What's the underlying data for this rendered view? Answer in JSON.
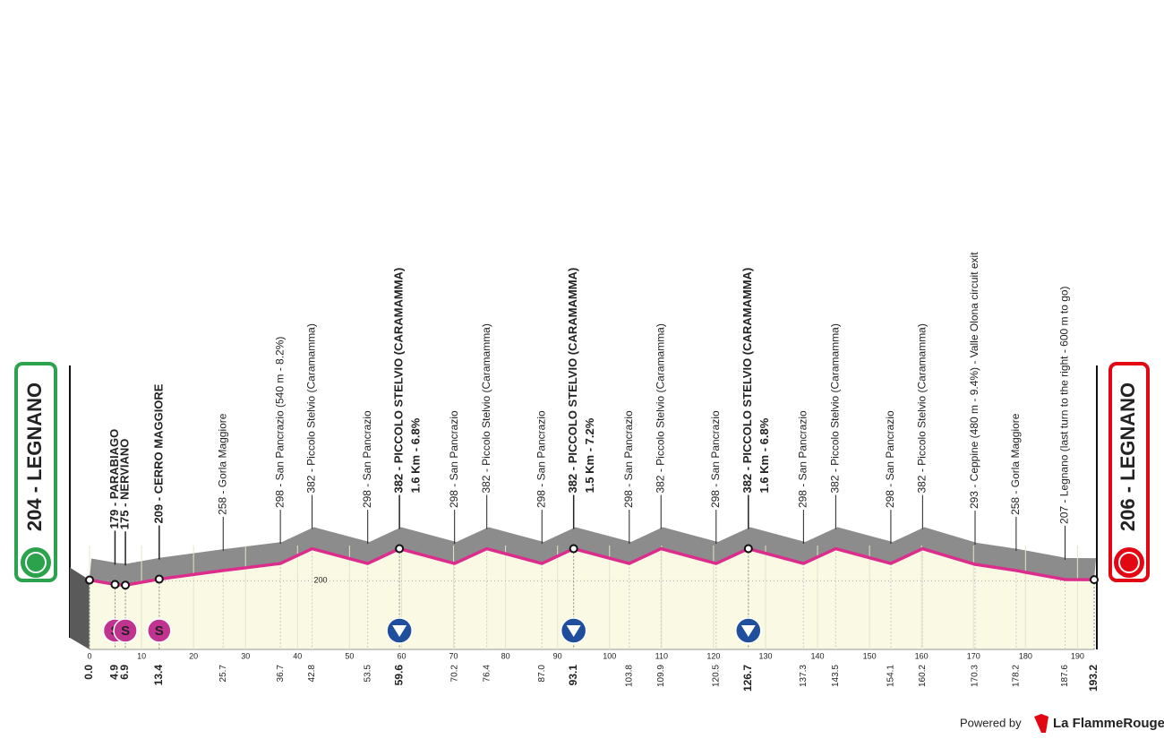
{
  "chart_data": {
    "type": "profile",
    "x": [
      {
        "value": 0,
        "label": "0.0"
      },
      4.9,
      6.9,
      13.4,
      25.7,
      36.7,
      42.8,
      53.5,
      59.6,
      70.2,
      76.4,
      {
        "value": 87,
        "label": "87.0"
      },
      93.1,
      103.8,
      109.9,
      120.5,
      126.7,
      137.3,
      143.5,
      154.1,
      160.2,
      170.3,
      178.2,
      187.6,
      193.2
    ],
    "values": [
      204,
      179,
      175,
      209,
      258,
      298,
      382,
      298,
      382,
      298,
      382,
      298,
      382,
      298,
      382,
      298,
      382,
      298,
      382,
      298,
      382,
      293,
      258,
      207,
      206
    ],
    "labels": [
      "204 - LEGNANO",
      "179 - PARABIAGO",
      "175 - NERVIANO",
      "209 - CERRO MAGGIORE",
      "258 - Gorla Maggiore",
      "298 - San Pancrazio (540 m - 8.2%)",
      "382 - Piccolo Stelvio (Caramamma)",
      "298 - San Pancrazio",
      "382 - PICCOLO STELVIO (CARAMAMMA)",
      "298 - San Pancrazio",
      "382 - Piccolo Stelvio (Caramamma)",
      "298 - San Pancrazio",
      "382 - PICCOLO STELVIO (CARAMAMMA)",
      "298 - San Pancrazio",
      "382 - Piccolo Stelvio (Caramamma)",
      "298 - San Pancrazio",
      "382 - PICCOLO STELVIO (CARAMAMMA)",
      "298 - San Pancrazio",
      "382 - Piccolo Stelvio (Caramamma)",
      "298 - San Pancrazio",
      "382 - Piccolo Stelvio (Caramamma)",
      "293 - Ceppine (480 m - 9.4%) - Valle Olona circuit exit",
      "258 - Gorla Maggiore",
      "207 - Legnano (last turn to the right - 600 m to go)",
      "206 - LEGNANO"
    ],
    "details": [
      null,
      null,
      null,
      null,
      null,
      null,
      null,
      null,
      "1.6 Km - 6.8%",
      null,
      null,
      null,
      "1.5 Km - 7.2%",
      null,
      null,
      null,
      "1.6 Km - 6.8%",
      null,
      null,
      null,
      null,
      null,
      null,
      null,
      null
    ],
    "icons": [
      "start",
      "sprint",
      "sprint",
      "sprint",
      null,
      null,
      null,
      null,
      "kom",
      null,
      null,
      null,
      "kom",
      null,
      null,
      null,
      "kom",
      null,
      null,
      null,
      null,
      null,
      null,
      null,
      "finish"
    ],
    "sprint_label": "S",
    "color": "#dc2d8c",
    "xlim": [
      0,
      193.2
    ],
    "ylim": [
      -190,
      400
    ],
    "xticks": [
      0,
      10,
      20,
      30,
      40,
      50,
      60,
      70,
      80,
      90,
      100,
      110,
      120,
      130,
      140,
      150,
      160,
      170,
      180,
      190
    ],
    "yticks": [
      200
    ]
  },
  "footer": {
    "powered_by": "Powered by",
    "brand": "La FlammeRouge"
  }
}
